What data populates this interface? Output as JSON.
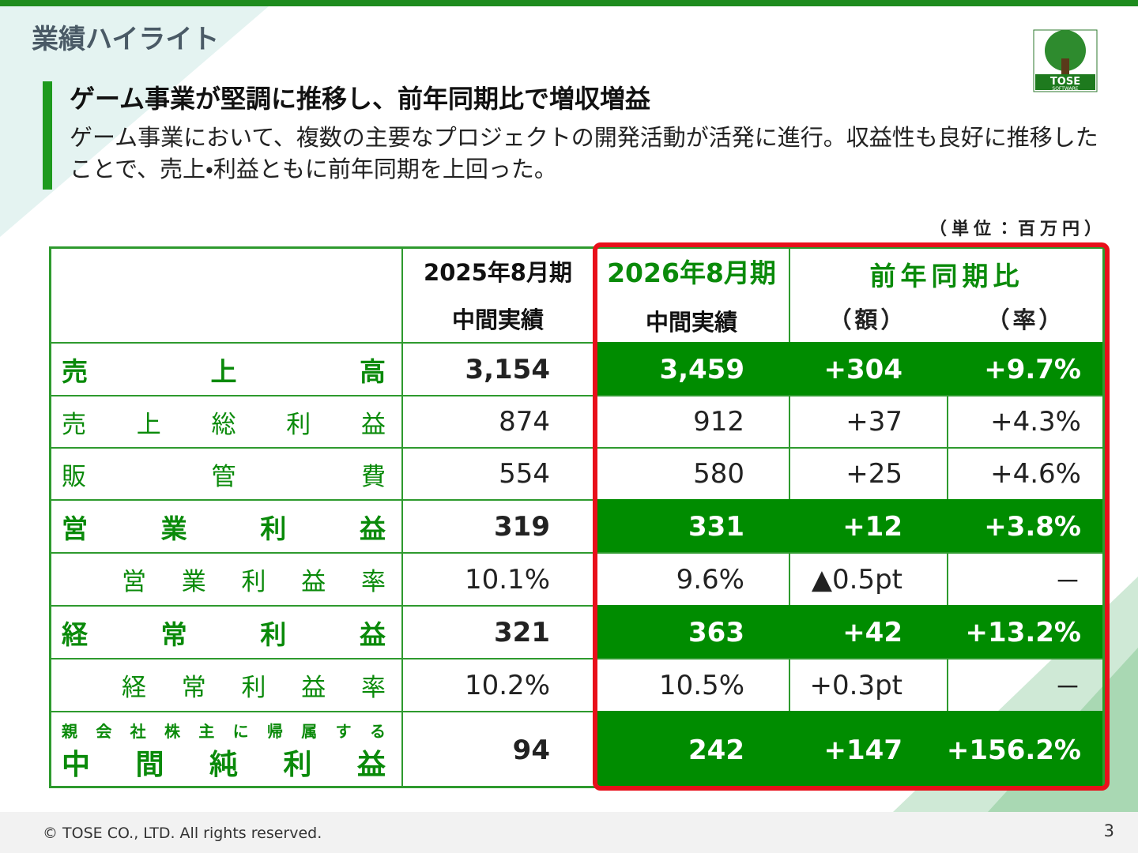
{
  "header": {
    "title": "業績ハイライト",
    "logo": "TOSE",
    "logo_sub": "SOFTWARE"
  },
  "headline": "ゲーム事業が堅調に推移し、前年同期比で増収増益",
  "body": "ゲーム事業において、複数の主要なプロジェクトの開発活動が活発に進行。収益性も良好に推移したことで、売上・利益ともに前年同期を上回った。",
  "unit": "（単位：百万円）",
  "table": {
    "columns": [
      {
        "period": "2025年8月期",
        "sub": "中間実績"
      },
      {
        "period": "2026年8月期",
        "sub": "中間実績"
      },
      {
        "period": "前年同期比",
        "sub": "（額）",
        "sub2": "（率）"
      }
    ],
    "rows": [
      {
        "label": "売上高",
        "cells": [
          "3,154",
          "3,459",
          "+304",
          "+9.7%"
        ]
      },
      {
        "label": "売上総利益",
        "cells": [
          "874",
          "912",
          "+37",
          "+4.3%"
        ]
      },
      {
        "label": "販管費",
        "cells": [
          "554",
          "580",
          "+25",
          "+4.6%"
        ]
      },
      {
        "label": "営業利益",
        "cells": [
          "319",
          "331",
          "+12",
          "+3.8%"
        ]
      },
      {
        "label": "営業利益率",
        "cells": [
          "10.1%",
          "9.6%",
          "▲0.5pt",
          "－"
        ]
      },
      {
        "label": "経常利益",
        "cells": [
          "321",
          "363",
          "+42",
          "+13.2%"
        ]
      },
      {
        "label": "経常利益率",
        "cells": [
          "10.2%",
          "10.5%",
          "+0.3pt",
          "－"
        ]
      },
      {
        "label_note": "親会社株主に帰属する",
        "label": "中間純利益",
        "cells": [
          "94",
          "242",
          "+147",
          "+156.2%"
        ]
      }
    ]
  },
  "footer": {
    "copyright": "© TOSE CO., LTD. All rights reserved.",
    "page": "3"
  }
}
